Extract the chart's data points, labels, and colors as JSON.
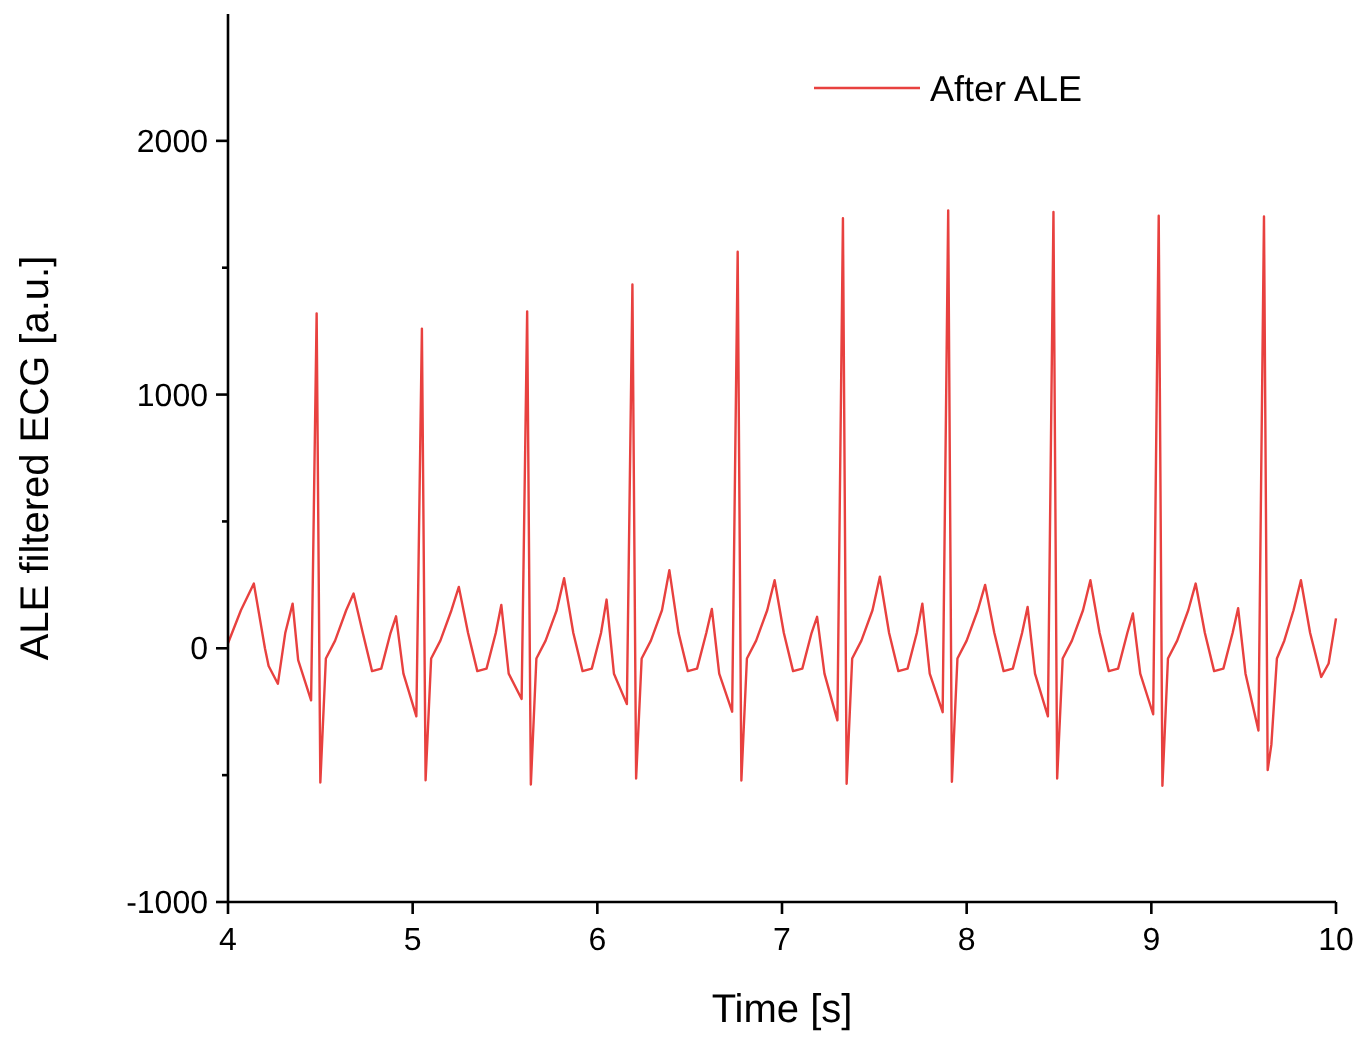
{
  "chart_data": {
    "type": "line",
    "xlabel": "Time [s]",
    "ylabel": "ALE filtered ECG [a.u.]",
    "xlim": [
      4,
      10
    ],
    "ylim": [
      -1000,
      2500
    ],
    "xticks": [
      4,
      5,
      6,
      7,
      8,
      9,
      10
    ],
    "yticks": [
      -1000,
      {
        "value": -500,
        "label": null
      },
      0,
      {
        "value": 500,
        "label": null
      },
      1000,
      {
        "value": 1500,
        "label": null
      },
      2000
    ],
    "grid": false,
    "legend": "top right",
    "marker": "none",
    "line_style": "solid",
    "series": [
      {
        "name": "After ALE",
        "color": "#e8413f",
        "x": [
          4.0,
          4.07,
          4.14,
          4.2,
          4.22,
          4.27,
          4.31,
          4.35,
          4.38,
          4.45,
          4.48,
          4.5,
          4.53,
          4.58,
          4.64,
          4.68,
          4.73,
          4.78,
          4.83,
          4.88,
          4.91,
          4.95,
          5.02,
          5.05,
          5.07,
          5.1,
          5.15,
          5.21,
          5.25,
          5.3,
          5.35,
          5.4,
          5.45,
          5.48,
          5.52,
          5.59,
          5.62,
          5.64,
          5.67,
          5.72,
          5.78,
          5.82,
          5.87,
          5.92,
          5.97,
          6.02,
          6.05,
          6.09,
          6.16,
          6.19,
          6.21,
          6.24,
          6.29,
          6.35,
          6.39,
          6.44,
          6.49,
          6.54,
          6.59,
          6.62,
          6.66,
          6.73,
          6.76,
          6.78,
          6.81,
          6.86,
          6.92,
          6.96,
          7.01,
          7.06,
          7.11,
          7.16,
          7.19,
          7.23,
          7.3,
          7.33,
          7.35,
          7.38,
          7.43,
          7.49,
          7.53,
          7.58,
          7.63,
          7.68,
          7.73,
          7.76,
          7.8,
          7.87,
          7.9,
          7.92,
          7.95,
          8.0,
          8.06,
          8.1,
          8.15,
          8.2,
          8.25,
          8.3,
          8.33,
          8.37,
          8.44,
          8.47,
          8.49,
          8.52,
          8.57,
          8.63,
          8.67,
          8.72,
          8.77,
          8.82,
          8.87,
          8.9,
          8.94,
          9.01,
          9.04,
          9.06,
          9.09,
          9.14,
          9.2,
          9.24,
          9.29,
          9.34,
          9.39,
          9.44,
          9.47,
          9.51,
          9.58,
          9.61,
          9.63,
          9.65,
          9.68,
          9.72,
          9.77,
          9.81,
          9.86,
          9.92,
          9.96,
          10.0
        ],
        "values": [
          20,
          150,
          255,
          0,
          -70,
          -140,
          60,
          176,
          -47,
          -205,
          1320,
          -529,
          -40,
          30,
          150,
          216,
          60,
          -90,
          -80,
          60,
          126,
          -100,
          -268,
          1260,
          -520,
          -40,
          30,
          150,
          242,
          60,
          -90,
          -80,
          60,
          171,
          -100,
          -200,
          1328,
          -537,
          -40,
          30,
          150,
          276,
          60,
          -90,
          -80,
          60,
          192,
          -100,
          -220,
          1434,
          -513,
          -40,
          30,
          150,
          308,
          60,
          -90,
          -80,
          60,
          155,
          -100,
          -250,
          1563,
          -521,
          -40,
          30,
          150,
          268,
          60,
          -90,
          -80,
          60,
          124,
          -100,
          -284,
          1695,
          -534,
          -40,
          30,
          150,
          282,
          60,
          -90,
          -80,
          60,
          176,
          -100,
          -252,
          1726,
          -526,
          -40,
          30,
          150,
          250,
          60,
          -90,
          -80,
          60,
          163,
          -100,
          -268,
          1720,
          -513,
          -40,
          30,
          150,
          268,
          60,
          -90,
          -80,
          60,
          137,
          -100,
          -260,
          1705,
          -542,
          -40,
          30,
          150,
          255,
          60,
          -90,
          -80,
          60,
          158,
          -100,
          -324,
          1702,
          -480,
          -380,
          -40,
          30,
          150,
          268,
          60,
          -113,
          -60,
          118
        ]
      }
    ]
  }
}
